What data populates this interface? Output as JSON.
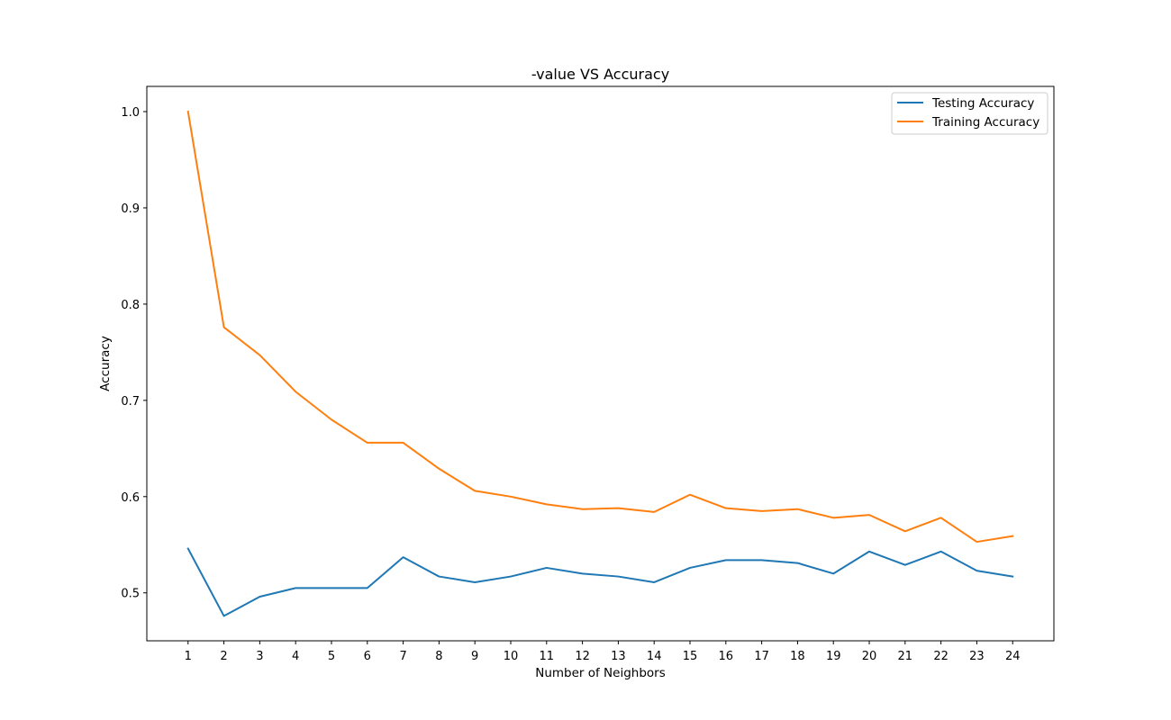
{
  "chart_data": {
    "type": "line",
    "title": "-value VS Accuracy",
    "xlabel": "Number of Neighbors",
    "ylabel": "Accuracy",
    "x": [
      1,
      2,
      3,
      4,
      5,
      6,
      7,
      8,
      9,
      10,
      11,
      12,
      13,
      14,
      15,
      16,
      17,
      18,
      19,
      20,
      21,
      22,
      23,
      24
    ],
    "xlim": [
      -0.15,
      25.15
    ],
    "ylim": [
      0.4502,
      1.0262
    ],
    "yticks": [
      0.5,
      0.6,
      0.7,
      0.8,
      0.9,
      1.0
    ],
    "ytick_labels": [
      "0.5",
      "0.6",
      "0.7",
      "0.8",
      "0.9",
      "1.0"
    ],
    "grid": false,
    "legend_position": "top-right",
    "series": [
      {
        "name": "Testing Accuracy",
        "color": "#1f77b4",
        "values": [
          0.546,
          0.476,
          0.496,
          0.505,
          0.505,
          0.505,
          0.537,
          0.517,
          0.511,
          0.517,
          0.526,
          0.52,
          0.517,
          0.511,
          0.526,
          0.534,
          0.534,
          0.531,
          0.52,
          0.543,
          0.529,
          0.543,
          0.523,
          0.517
        ]
      },
      {
        "name": "Training Accuracy",
        "color": "#ff7f0e",
        "values": [
          1.0,
          0.776,
          0.747,
          0.709,
          0.68,
          0.656,
          0.656,
          0.629,
          0.606,
          0.6,
          0.592,
          0.587,
          0.588,
          0.584,
          0.602,
          0.588,
          0.585,
          0.587,
          0.578,
          0.581,
          0.564,
          0.578,
          0.553,
          0.559
        ]
      }
    ]
  }
}
